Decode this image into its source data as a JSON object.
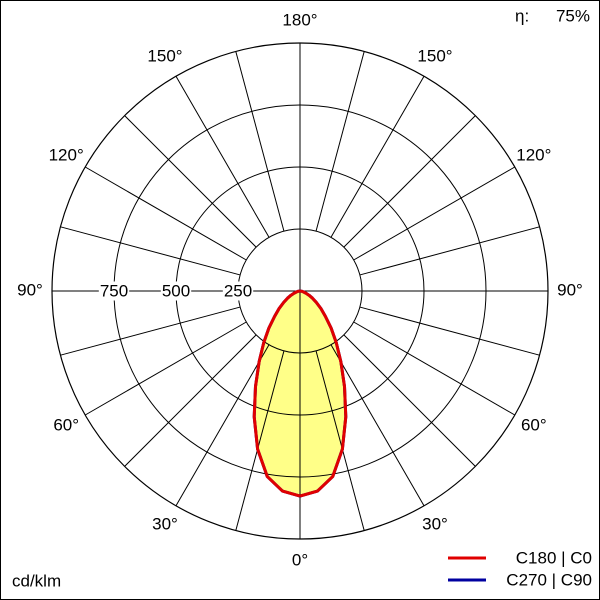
{
  "chart_data": {
    "type": "polar",
    "unit": "cd/klm",
    "efficiency_symbol": "η:",
    "efficiency": "75%",
    "rlim": [
      0,
      1000
    ],
    "rticks": [
      250,
      500,
      750
    ],
    "angle_ticks": [
      {
        "value": 0,
        "label": "0°"
      },
      {
        "value": 30,
        "label": "30°"
      },
      {
        "value": 60,
        "label": "60°"
      },
      {
        "value": 90,
        "label": "90°"
      },
      {
        "value": 120,
        "label": "120°"
      },
      {
        "value": 150,
        "label": "150°"
      },
      {
        "value": 180,
        "label": "180°"
      }
    ],
    "angle_grid": [
      0,
      15,
      30,
      45,
      60,
      75,
      90,
      105,
      120,
      135,
      150,
      165,
      180
    ],
    "fill": "#ffff88",
    "x": [
      0,
      5,
      10,
      15,
      20,
      25,
      30,
      35,
      40,
      45,
      50,
      55,
      60,
      65,
      70,
      75,
      80,
      85,
      90
    ],
    "series": [
      {
        "name": "C270 | C90",
        "color": "#0000a0",
        "values": [
          827,
          810,
          760,
          660,
          540,
          425,
          330,
          255,
          195,
          145,
          110,
          80,
          58,
          40,
          25,
          15,
          8,
          3,
          0
        ]
      },
      {
        "name": "C180 | C0",
        "color": "#e00000",
        "values": [
          827,
          810,
          760,
          660,
          540,
          425,
          330,
          255,
          195,
          145,
          110,
          80,
          58,
          40,
          25,
          15,
          8,
          3,
          0
        ]
      }
    ]
  }
}
